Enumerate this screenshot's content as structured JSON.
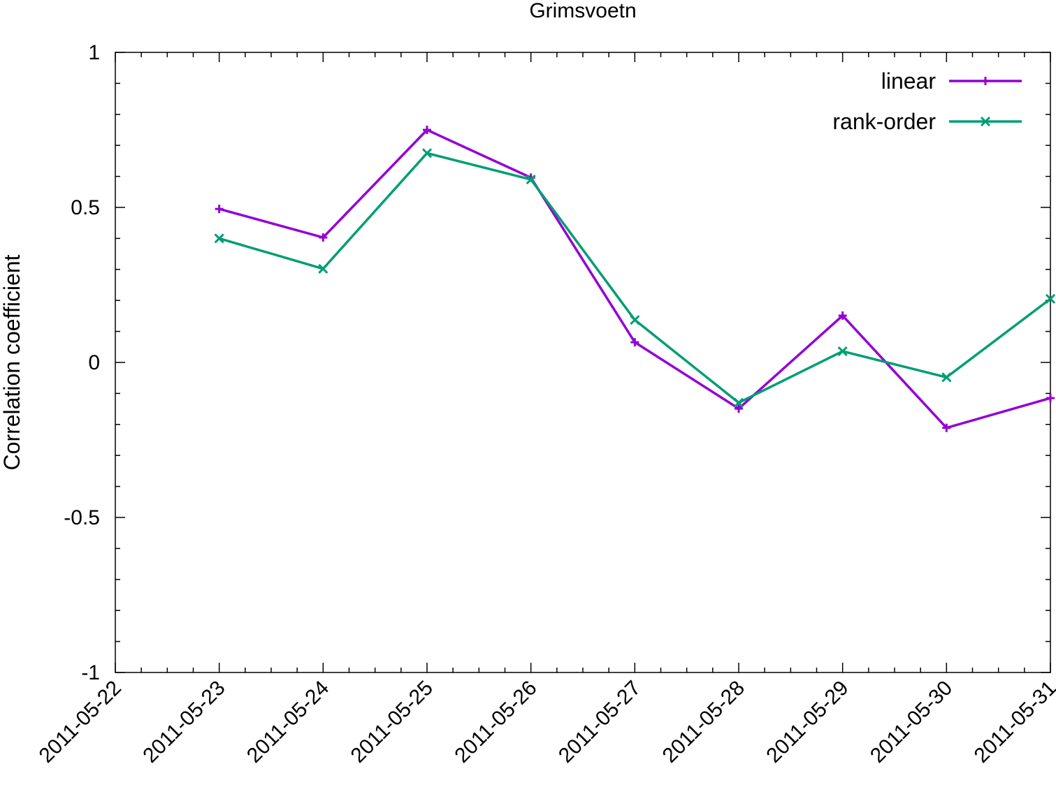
{
  "chart_data": {
    "type": "line",
    "title": "Grimsvoetn",
    "xlabel": "",
    "ylabel": "Correlation coefficient",
    "x_type": "date",
    "xlim": [
      "2011-05-22",
      "2011-05-31"
    ],
    "ylim": [
      -1,
      1
    ],
    "x_ticks": [
      "2011-05-22",
      "2011-05-23",
      "2011-05-24",
      "2011-05-25",
      "2011-05-26",
      "2011-05-27",
      "2011-05-28",
      "2011-05-29",
      "2011-05-30",
      "2011-05-31"
    ],
    "y_ticks": [
      "-1",
      "-0.5",
      "0",
      "0.5",
      "1"
    ],
    "grid": false,
    "legend_position": "top-right",
    "x": [
      "2011-05-23",
      "2011-05-24",
      "2011-05-25",
      "2011-05-26",
      "2011-05-27",
      "2011-05-28",
      "2011-05-29",
      "2011-05-30",
      "2011-05-31"
    ],
    "series": [
      {
        "name": "linear",
        "color": "#9400d3",
        "marker": "plus",
        "values": [
          0.495,
          0.403,
          0.75,
          0.596,
          0.065,
          -0.149,
          0.151,
          -0.211,
          -0.115
        ]
      },
      {
        "name": "rank-order",
        "color": "#009e73",
        "marker": "cross",
        "values": [
          0.4,
          0.302,
          0.675,
          0.59,
          0.137,
          -0.13,
          0.036,
          -0.048,
          0.205
        ]
      }
    ]
  }
}
